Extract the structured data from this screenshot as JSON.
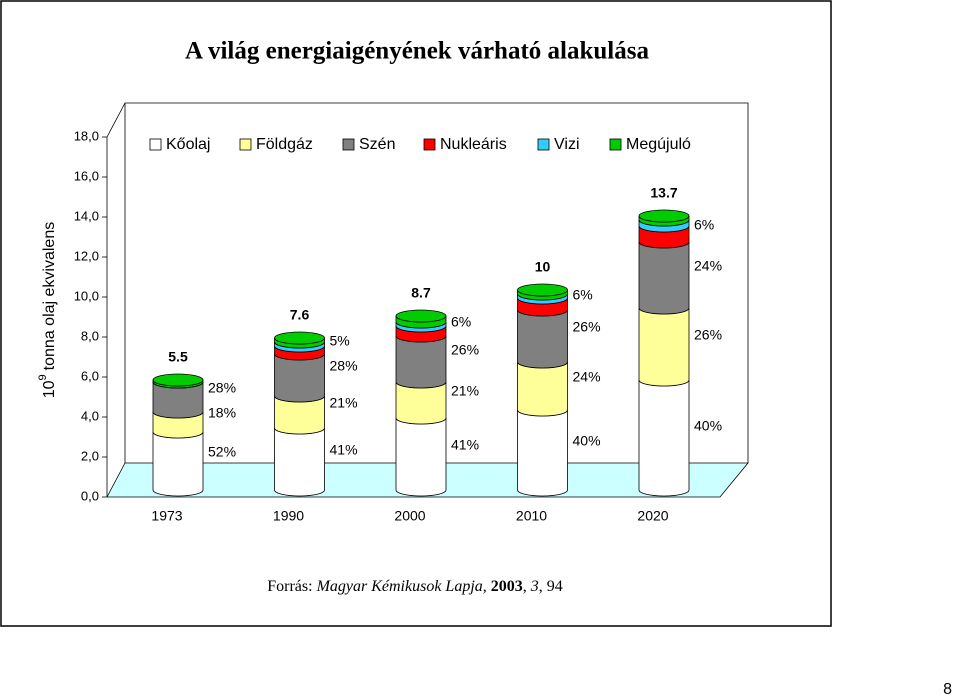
{
  "chart_data": {
    "type": "stacked-cylinder",
    "title": "A világ energiaigényének várható alakulása",
    "ylabel": {
      "base": "10",
      "exponent": "9",
      "text": "tonna olaj ekvivalens"
    },
    "categories": [
      "1973",
      "1990",
      "2000",
      "2010",
      "2020"
    ],
    "series": [
      {
        "name": "Kőolaj",
        "color": "#ffffff",
        "values": [
          2.9,
          3.1,
          3.6,
          4.0,
          5.5
        ],
        "percent_labels": [
          "52%",
          "41%",
          "41%",
          "40%",
          "40%"
        ]
      },
      {
        "name": "Földgáz",
        "color": "#ffff99",
        "values": [
          1.0,
          1.6,
          1.8,
          2.4,
          3.6
        ],
        "percent_labels": [
          "18%",
          "21%",
          "21%",
          "24%",
          "26%"
        ]
      },
      {
        "name": "Szén",
        "color": "#808080",
        "values": [
          1.5,
          2.1,
          2.3,
          2.6,
          3.3
        ],
        "percent_labels": [
          "28%",
          "28%",
          "26%",
          "26%",
          "24%"
        ]
      },
      {
        "name": "Nukleáris",
        "color": "#ff0000",
        "values": [
          0.0,
          0.4,
          0.5,
          0.6,
          0.8
        ],
        "percent_labels": [
          null,
          "5%",
          "6%",
          "6%",
          "6%"
        ]
      },
      {
        "name": "Vizi",
        "color": "#33ccff",
        "values": [
          0.0,
          0.2,
          0.2,
          0.2,
          0.3
        ]
      },
      {
        "name": "Megújuló",
        "color": "#00cc00",
        "values": [
          0.1,
          0.2,
          0.3,
          0.2,
          0.2
        ]
      }
    ],
    "totals": [
      5.5,
      7.6,
      8.7,
      10,
      13.7
    ],
    "ylim": [
      0,
      18
    ],
    "yticks": [
      {
        "value": 0,
        "label": "0,0"
      },
      {
        "value": 2,
        "label": "2,0"
      },
      {
        "value": 4,
        "label": "4,0"
      },
      {
        "value": 6,
        "label": "6,0"
      },
      {
        "value": 8,
        "label": "8,0"
      },
      {
        "value": 10,
        "label": "10,0"
      },
      {
        "value": 12,
        "label": "12,0"
      },
      {
        "value": 14,
        "label": "14,0"
      },
      {
        "value": 16,
        "label": "16,0"
      },
      {
        "value": 18,
        "label": "18,0"
      }
    ],
    "source": [
      "Forrás:",
      "Magyar Kémikusok Lapja,",
      "2003",
      ",",
      "3",
      ", 94"
    ]
  },
  "page_number": "8"
}
